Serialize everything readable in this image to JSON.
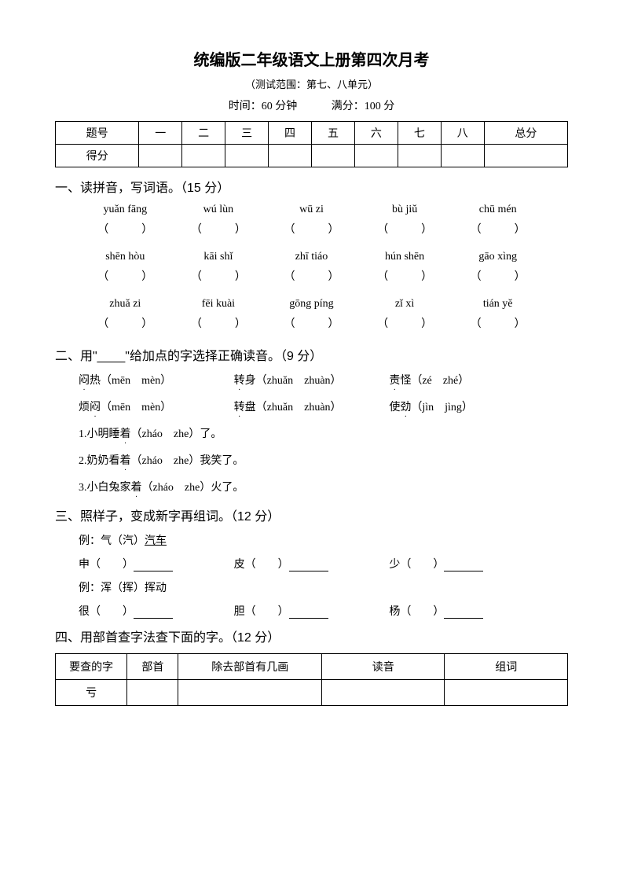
{
  "header": {
    "title": "统编版二年级语文上册第四次月考",
    "subtitle": "（测试范围：第七、八单元）",
    "time_label": "时间：60 分钟",
    "score_label": "满分：100 分"
  },
  "score_table": {
    "headers": [
      "题号",
      "一",
      "二",
      "三",
      "四",
      "五",
      "六",
      "七",
      "八",
      "总分"
    ],
    "row_label": "得分"
  },
  "q1": {
    "title": "一、读拼音，写词语。（15 分）",
    "rows": [
      [
        "yuǎn fāng",
        "wú lùn",
        "wū zi",
        "bù jiǔ",
        "chū mén"
      ],
      [
        "shēn hòu",
        "kāi shǐ",
        "zhī tiáo",
        "hún shēn",
        "gāo xìng"
      ],
      [
        "zhuǎ zi",
        "fēi kuài",
        "gōng píng",
        "zǐ xì",
        "tián yě"
      ]
    ],
    "paren_l": "（",
    "paren_r": "）"
  },
  "q2": {
    "title": "二、用\"____\"给加点的字选择正确读音。（9 分）",
    "row1": [
      {
        "char": "闷",
        "word": "热（mēn　mèn）"
      },
      {
        "char": "转",
        "word": "身（zhuǎn　zhuàn）"
      },
      {
        "char": "责",
        "word": "怪（zé　zhé）"
      }
    ],
    "row2": [
      {
        "prefix": "烦",
        "char": "闷",
        "word": "（mēn　mèn）"
      },
      {
        "char": "转",
        "word": "盘（zhuǎn　zhuàn）"
      },
      {
        "prefix": "使",
        "char": "劲",
        "word": "（jìn　jìng）"
      }
    ],
    "lines": [
      {
        "num": "1.",
        "pre": "小明睡",
        "char": "着",
        "post": "（zháo　zhe）了。"
      },
      {
        "num": "2.",
        "pre": "奶奶看",
        "char": "着",
        "post": "（zháo　zhe）我笑了。"
      },
      {
        "num": "3.",
        "pre": "小白兔家",
        "char": "着",
        "post": "（zháo　zhe）火了。"
      }
    ]
  },
  "q3": {
    "title": "三、照样子，变成新字再组词。（12 分）",
    "ex1": "例：气（汽）",
    "ex1_word": "汽车",
    "row1": [
      "申（　　）",
      "皮（　　）",
      "少（　　）"
    ],
    "ex2": "例：浑（挥）挥动",
    "row2": [
      "很（　　）",
      "胆（　　）",
      "杨（　　）"
    ]
  },
  "q4": {
    "title": "四、用部首查字法查下面的字。（12 分）",
    "headers": [
      "要查的字",
      "部首",
      "除去部首有几画",
      "读音",
      "组词"
    ],
    "col_widths": [
      "14%",
      "10%",
      "28%",
      "24%",
      "24%"
    ],
    "first_char": "亏"
  }
}
